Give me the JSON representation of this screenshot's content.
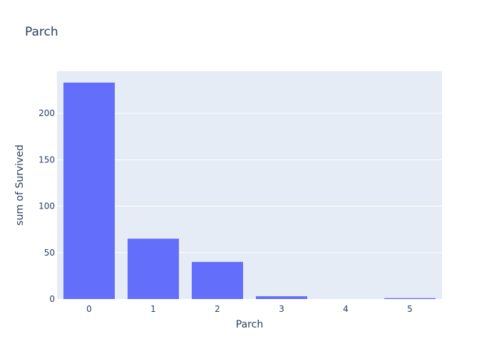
{
  "chart_data": {
    "type": "bar",
    "title": "Parch",
    "xlabel": "Parch",
    "ylabel": "sum of Survived",
    "categories": [
      "0",
      "1",
      "2",
      "3",
      "4",
      "5"
    ],
    "values": [
      233,
      65,
      40,
      3,
      0,
      1
    ],
    "ylim": [
      0,
      245.3
    ],
    "yticks": [
      0,
      50,
      100,
      150,
      200
    ],
    "grid": true,
    "colors": {
      "bar": "#636efa",
      "plot_background": "#e5ecf6",
      "grid": "#ffffff",
      "text": "#2a3f5f"
    }
  }
}
